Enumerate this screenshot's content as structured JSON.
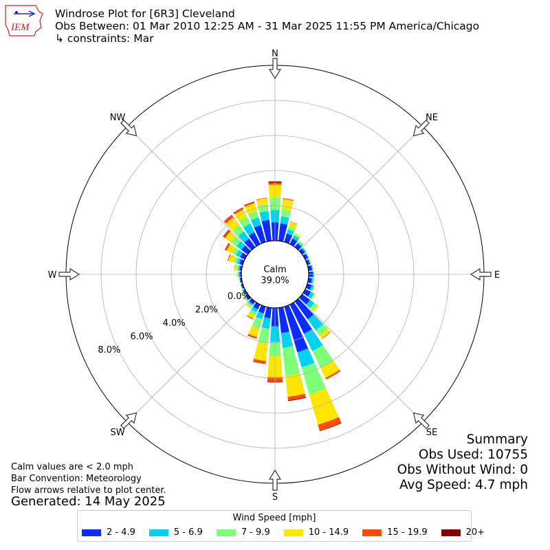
{
  "header": {
    "title": "Windrose Plot for [6R3] Cleveland",
    "subtitle": "Obs Between: 01 Mar 2010 12:25 AM - 31 Mar 2025 11:55 PM America/Chicago",
    "constraints": "↳ constraints: Mar"
  },
  "logo": {
    "text": "IEM",
    "color": "#cc2222",
    "icon": "iowa-state-outline-icon"
  },
  "summary": {
    "heading": "Summary",
    "obs_used": "Obs Used: 10755",
    "obs_without_wind": "Obs Without Wind: 0",
    "avg_speed": "Avg Speed: 4.7 mph"
  },
  "notes": {
    "calm": "Calm values are < 2.0 mph",
    "bar_convention": "Bar Convention: Meteorology",
    "flow_arrows": "Flow arrows relative to plot center.",
    "generated": "Generated: 14 May 2025"
  },
  "chart_data": {
    "type": "windrose",
    "center_label": "Calm",
    "calm_percent": "39.0%",
    "radial_tick_labels": [
      "0.0%",
      "2.0%",
      "4.0%",
      "6.0%",
      "8.0%"
    ],
    "radial_ticks": [
      0,
      2,
      4,
      6,
      8
    ],
    "calm_radius_value": 0,
    "direction_labels": [
      "N",
      "NE",
      "E",
      "SE",
      "S",
      "SW",
      "W",
      "NW"
    ],
    "legend_title": "Wind Speed [mph]",
    "speed_bins": [
      {
        "label": "2 - 4.9",
        "color": "#0a2cff"
      },
      {
        "label": "5 - 6.9",
        "color": "#00d2f0"
      },
      {
        "label": "7 - 9.9",
        "color": "#7dff7a"
      },
      {
        "label": "10 - 14.9",
        "color": "#ffe600"
      },
      {
        "label": "15 - 19.9",
        "color": "#ff4a0a"
      },
      {
        "label": "20+",
        "color": "#800000"
      }
    ],
    "directions_deg": [
      0,
      10,
      20,
      30,
      40,
      50,
      60,
      70,
      80,
      90,
      100,
      110,
      120,
      130,
      140,
      150,
      160,
      170,
      180,
      190,
      200,
      210,
      220,
      230,
      240,
      250,
      260,
      270,
      280,
      290,
      300,
      310,
      320,
      330,
      340,
      350
    ],
    "cumulative_percent": [
      [
        1.05,
        1.75,
        2.45,
        3.2,
        3.32,
        3.38
      ],
      [
        1.0,
        1.4,
        1.85,
        2.4,
        2.45,
        2.45
      ],
      [
        0.5,
        0.75,
        0.95,
        1.2,
        1.22,
        1.22
      ],
      [
        0.35,
        0.55,
        0.62,
        0.7,
        0.7,
        0.7
      ],
      [
        0.25,
        0.35,
        0.4,
        0.45,
        0.45,
        0.45
      ],
      [
        0.2,
        0.27,
        0.3,
        0.32,
        0.32,
        0.32
      ],
      [
        0.18,
        0.22,
        0.25,
        0.27,
        0.27,
        0.27
      ],
      [
        0.15,
        0.2,
        0.23,
        0.25,
        0.25,
        0.25
      ],
      [
        0.2,
        0.25,
        0.27,
        0.28,
        0.28,
        0.28
      ],
      [
        0.25,
        0.3,
        0.32,
        0.33,
        0.33,
        0.33
      ],
      [
        0.2,
        0.28,
        0.33,
        0.35,
        0.35,
        0.35
      ],
      [
        0.25,
        0.38,
        0.43,
        0.45,
        0.45,
        0.45
      ],
      [
        0.35,
        0.55,
        0.62,
        0.65,
        0.65,
        0.65
      ],
      [
        0.55,
        0.85,
        1.05,
        1.15,
        1.15,
        1.15
      ],
      [
        1.25,
        2.05,
        2.4,
        2.62,
        2.65,
        2.65
      ],
      [
        1.85,
        2.95,
        4.0,
        4.65,
        4.75,
        4.75
      ],
      [
        2.7,
        3.6,
        5.2,
        7.0,
        7.35,
        7.38
      ],
      [
        1.45,
        2.3,
        3.9,
        5.1,
        5.3,
        5.34
      ],
      [
        1.05,
        1.95,
        2.75,
        3.95,
        4.22,
        4.25
      ],
      [
        0.6,
        1.2,
        2.05,
        3.05,
        3.2,
        3.22
      ],
      [
        0.4,
        0.75,
        1.3,
        1.8,
        1.88,
        1.9
      ],
      [
        0.3,
        0.5,
        0.7,
        0.9,
        0.95,
        0.95
      ],
      [
        0.2,
        0.3,
        0.38,
        0.45,
        0.46,
        0.46
      ],
      [
        0.15,
        0.22,
        0.28,
        0.3,
        0.3,
        0.3
      ],
      [
        0.1,
        0.15,
        0.18,
        0.2,
        0.2,
        0.2
      ],
      [
        0.1,
        0.12,
        0.14,
        0.15,
        0.15,
        0.15
      ],
      [
        0.1,
        0.12,
        0.13,
        0.15,
        0.15,
        0.15
      ],
      [
        0.1,
        0.15,
        0.2,
        0.25,
        0.25,
        0.25
      ],
      [
        0.12,
        0.2,
        0.3,
        0.4,
        0.42,
        0.42
      ],
      [
        0.2,
        0.35,
        0.55,
        0.85,
        0.9,
        0.9
      ],
      [
        0.3,
        0.55,
        0.8,
        1.15,
        1.25,
        1.27
      ],
      [
        0.45,
        0.8,
        1.2,
        1.6,
        1.72,
        1.75
      ],
      [
        0.6,
        1.1,
        1.55,
        2.1,
        2.25,
        2.27
      ],
      [
        0.75,
        1.3,
        1.75,
        2.2,
        2.3,
        2.32
      ],
      [
        1.0,
        1.45,
        1.85,
        2.3,
        2.38,
        2.4
      ],
      [
        1.2,
        1.7,
        2.1,
        2.45,
        2.48,
        2.48
      ]
    ]
  }
}
